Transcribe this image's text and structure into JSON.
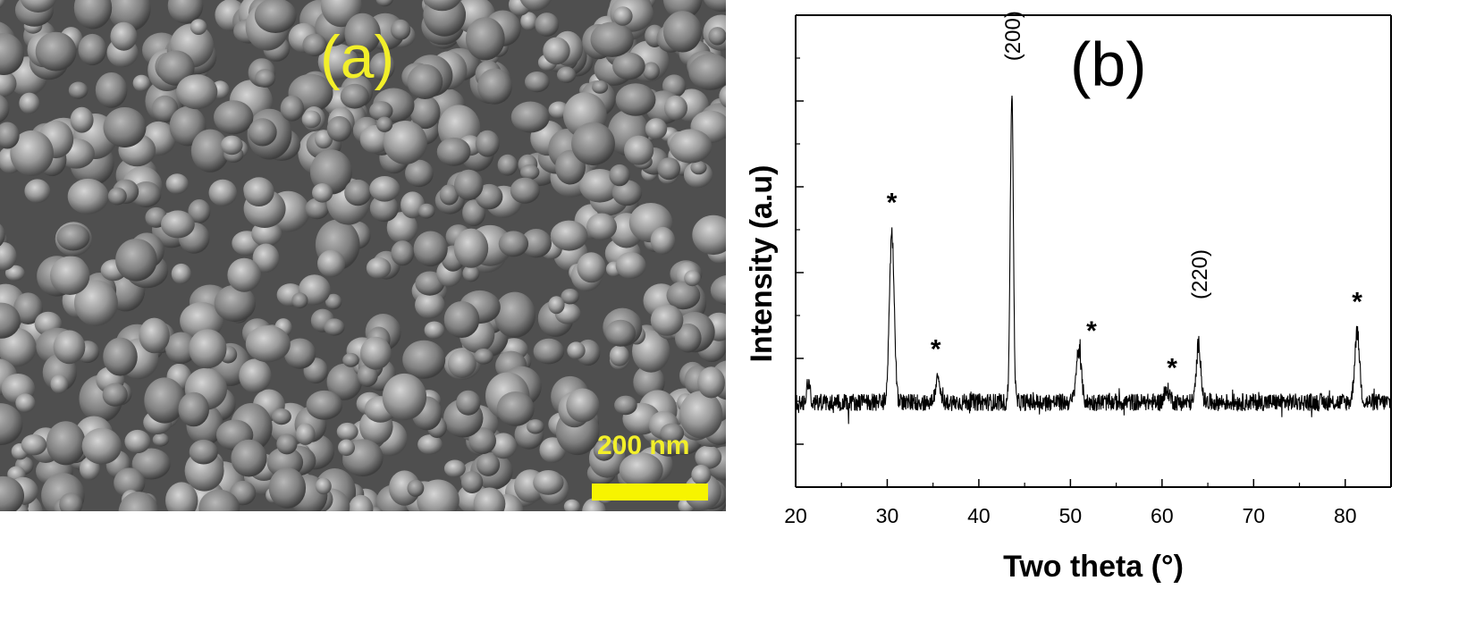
{
  "panel_a": {
    "label": "(a)",
    "scale_bar_text": "200 nm",
    "label_color": "#f2ef2a"
  },
  "chart_data": {
    "type": "line",
    "panel_label": "(b)",
    "xlabel": "Two theta (°)",
    "ylabel": "Intensity (a.u)",
    "xlim": [
      20,
      85
    ],
    "x_ticks": [
      20,
      30,
      40,
      50,
      60,
      70,
      80
    ],
    "y_tick_labels_shown": false,
    "baseline": 0.05,
    "noise": 0.03,
    "series": [
      {
        "peaks": [
          {
            "x": 21.4,
            "height": 0.06,
            "width": 0.18
          },
          {
            "x": 30.5,
            "height": 0.46,
            "width": 0.26
          },
          {
            "x": 35.5,
            "height": 0.06,
            "width": 0.25
          },
          {
            "x": 43.6,
            "height": 0.84,
            "width": 0.17
          },
          {
            "x": 50.9,
            "height": 0.14,
            "width": 0.28
          },
          {
            "x": 60.6,
            "height": 0.03,
            "width": 0.3
          },
          {
            "x": 64.0,
            "height": 0.16,
            "width": 0.24
          },
          {
            "x": 81.3,
            "height": 0.19,
            "width": 0.27
          }
        ]
      }
    ],
    "annotations": [
      {
        "text": "*",
        "x": 30.5,
        "y": 0.57
      },
      {
        "text": "*",
        "x": 35.3,
        "y": 0.17
      },
      {
        "text": "(200)",
        "x": 43.6,
        "y": 0.98,
        "rotated": true
      },
      {
        "text": "*",
        "x": 52.3,
        "y": 0.22
      },
      {
        "text": "*",
        "x": 61.1,
        "y": 0.12
      },
      {
        "text": "(220)",
        "x": 64.0,
        "y": 0.33,
        "rotated": true
      },
      {
        "text": "*",
        "x": 81.3,
        "y": 0.3
      }
    ],
    "line_color": "#000000"
  }
}
